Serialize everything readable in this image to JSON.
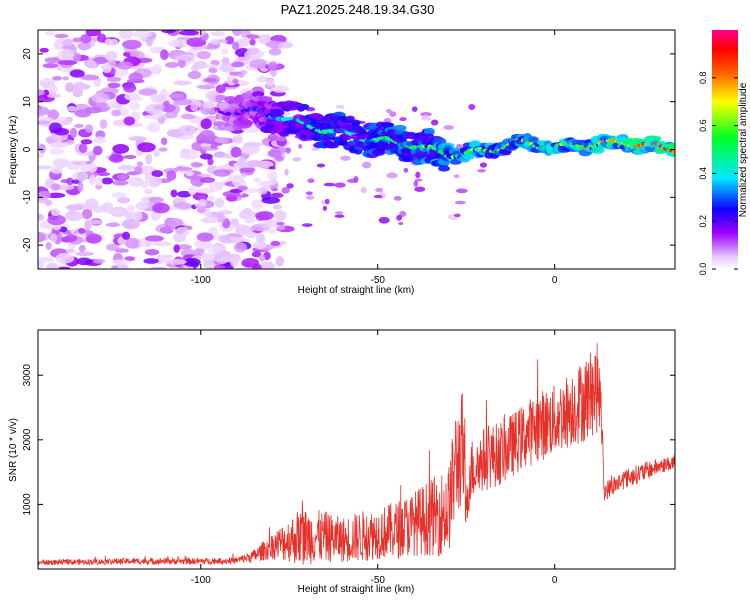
{
  "title": "PAZ1.2025.248.19.34.G30",
  "chart_data": [
    {
      "type": "heatmap",
      "name": "spectrogram",
      "xlabel": "Height of straight line (km)",
      "ylabel": "Frequency (Hz)",
      "xlim": [
        -146,
        34
      ],
      "ylim": [
        -25,
        25
      ],
      "xticks": [
        -100,
        -50,
        0
      ],
      "yticks": [
        -20,
        -10,
        0,
        10,
        20
      ],
      "colorbar": {
        "label": "Normalized spectral amplitude",
        "ticks": [
          0.0,
          0.2,
          0.4,
          0.6,
          0.8
        ],
        "range": [
          0,
          1
        ],
        "colors": [
          "#ffffff",
          "#a000ff",
          "#0000ff",
          "#00ffff",
          "#00ff00",
          "#ffff00",
          "#ff8000",
          "#ff0000",
          "#ff0080"
        ]
      },
      "ridge": {
        "description_points_x": [
          -95,
          -85,
          -78,
          -70,
          -60,
          -50,
          -40,
          -30,
          -20,
          -10,
          0,
          10,
          20,
          34
        ],
        "description_points_y": [
          8,
          8,
          7,
          5,
          3.5,
          2,
          1,
          -1,
          -0.5,
          1.5,
          0.5,
          1,
          1.5,
          0
        ],
        "amplitude": [
          0.15,
          0.25,
          0.35,
          0.45,
          0.45,
          0.5,
          0.55,
          0.6,
          0.6,
          0.6,
          0.65,
          0.7,
          0.75,
          0.9
        ]
      }
    },
    {
      "type": "line",
      "name": "snr",
      "xlabel": "Height of straight line (km)",
      "ylabel": "SNR (10 * v/v)",
      "xlim": [
        -146,
        34
      ],
      "ylim": [
        0,
        3700
      ],
      "xticks": [
        -100,
        -50,
        0
      ],
      "yticks": [
        1000,
        2000,
        3000
      ],
      "color": "#e8302a",
      "envelope_x": [
        -146,
        -120,
        -100,
        -90,
        -85,
        -80,
        -75,
        -72,
        -65,
        -60,
        -55,
        -50,
        -45,
        -40,
        -35,
        -30,
        -28,
        -26,
        -25,
        -24,
        -20,
        -15,
        -10,
        -5,
        0,
        5,
        8,
        10,
        12,
        13,
        14,
        20,
        25,
        30,
        34
      ],
      "envelope_mean": [
        100,
        120,
        120,
        130,
        200,
        350,
        450,
        500,
        500,
        450,
        500,
        550,
        600,
        700,
        800,
        900,
        1600,
        1900,
        800,
        1500,
        1700,
        1800,
        2000,
        2200,
        2300,
        2500,
        2600,
        2700,
        2800,
        2600,
        1200,
        1400,
        1500,
        1600,
        1650
      ],
      "envelope_noise": [
        40,
        50,
        50,
        50,
        100,
        200,
        350,
        450,
        400,
        350,
        400,
        400,
        450,
        500,
        600,
        700,
        900,
        900,
        400,
        500,
        500,
        500,
        500,
        550,
        550,
        600,
        650,
        700,
        700,
        500,
        150,
        150,
        150,
        120,
        120
      ]
    }
  ]
}
